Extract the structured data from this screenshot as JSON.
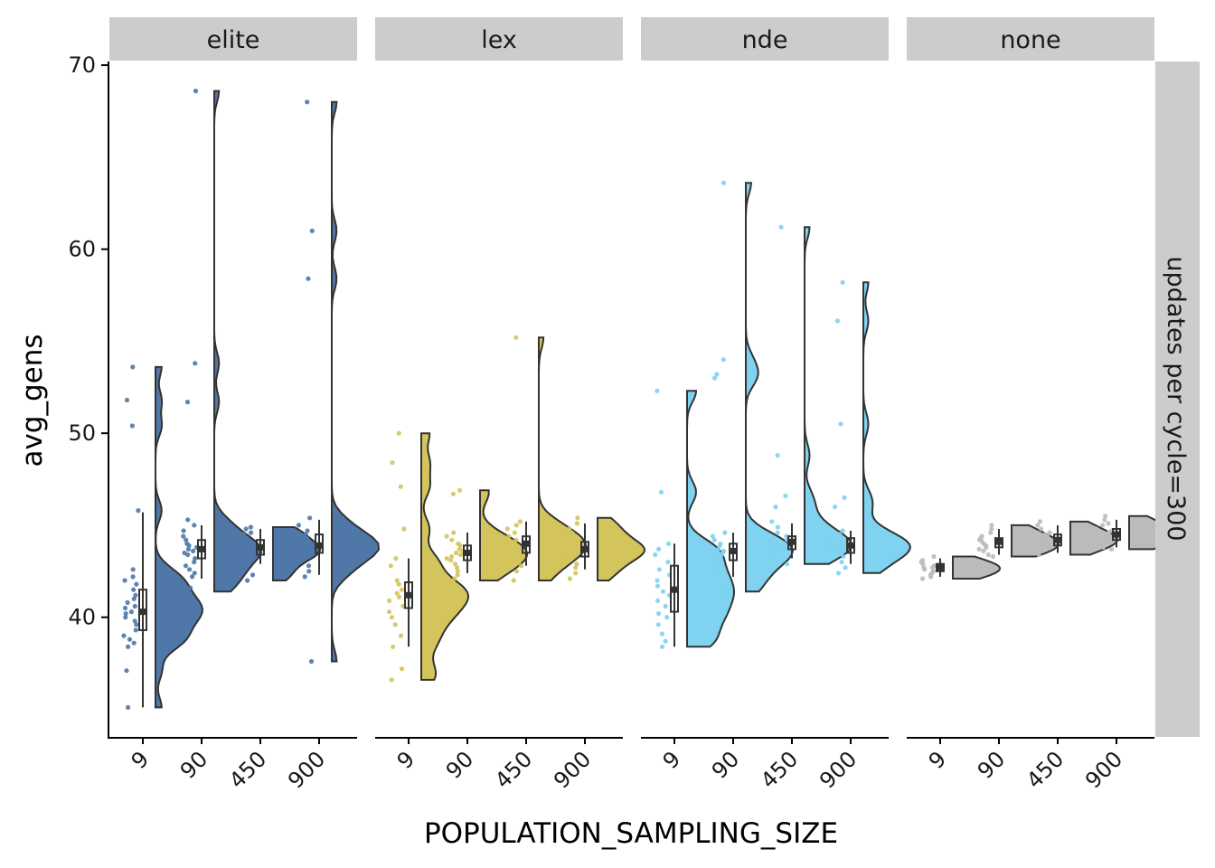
{
  "chart_data": {
    "type": "raincloud",
    "xlabel": "POPULATION_SAMPLING_SIZE",
    "ylabel": "avg_gens",
    "facet_row_label": "updates per cycle=300",
    "categories": [
      "9",
      "90",
      "450",
      "900"
    ],
    "ylim": [
      33.5,
      70.2
    ],
    "yticks": [
      40,
      50,
      60,
      70
    ],
    "grid": false,
    "legend": "none",
    "panels": [
      {
        "name": "elite",
        "color": "#4f77a8",
        "groups": [
          {
            "x": "9",
            "median": 40.3,
            "q1": 39.3,
            "q3": 41.5,
            "whisker_low": 35.1,
            "whisker_high": 45.7,
            "min": 35.1,
            "max": 53.6,
            "points": [
              53.6,
              51.8,
              50.4,
              45.8,
              42.6,
              42.2,
              42.0,
              41.8,
              41.5,
              41.2,
              41.0,
              40.8,
              40.6,
              40.5,
              40.3,
              40.2,
              40.0,
              39.8,
              39.6,
              39.3,
              39.0,
              38.8,
              38.6,
              38.4,
              37.1,
              35.1
            ]
          },
          {
            "x": "90",
            "median": 43.7,
            "q1": 43.2,
            "q3": 44.2,
            "whisker_low": 42.1,
            "whisker_high": 45.0,
            "min": 41.4,
            "max": 68.6,
            "points": [
              68.6,
              53.8,
              51.7,
              45.3,
              45.0,
              44.7,
              44.4,
              44.2,
              44.0,
              43.9,
              43.8,
              43.7,
              43.6,
              43.5,
              43.4,
              43.2,
              43.0,
              42.8,
              42.6,
              42.4,
              42.2,
              41.9,
              41.6,
              41.4
            ]
          },
          {
            "x": "450",
            "median": 43.8,
            "q1": 43.4,
            "q3": 44.2,
            "whisker_low": 42.9,
            "whisker_high": 44.8,
            "min": 42.0,
            "max": 44.9,
            "points": [
              44.9,
              44.8,
              44.6,
              44.5,
              44.3,
              44.1,
              44.0,
              43.9,
              43.8,
              43.7,
              43.6,
              43.5,
              43.4,
              43.3,
              43.2,
              43.0,
              42.8,
              42.5,
              42.3,
              42.0
            ]
          },
          {
            "x": "900",
            "median": 43.9,
            "q1": 43.5,
            "q3": 44.5,
            "whisker_low": 42.3,
            "whisker_high": 45.3,
            "min": 37.6,
            "max": 68.0,
            "points": [
              68.0,
              61.0,
              58.4,
              45.4,
              45.0,
              44.7,
              44.5,
              44.3,
              44.1,
              44.0,
              43.9,
              43.8,
              43.7,
              43.6,
              43.5,
              43.3,
              43.1,
              42.8,
              42.5,
              42.2,
              37.6
            ]
          }
        ]
      },
      {
        "name": "lex",
        "color": "#d4c45c",
        "groups": [
          {
            "x": "9",
            "median": 41.2,
            "q1": 40.5,
            "q3": 41.9,
            "whisker_low": 38.4,
            "whisker_high": 43.2,
            "min": 36.6,
            "max": 50.0,
            "points": [
              50.0,
              48.4,
              47.1,
              44.8,
              43.2,
              42.8,
              42.0,
              41.8,
              41.5,
              41.3,
              41.1,
              40.9,
              40.6,
              40.3,
              40.0,
              39.6,
              39.0,
              38.4,
              37.2,
              36.6
            ]
          },
          {
            "x": "90",
            "median": 43.5,
            "q1": 43.1,
            "q3": 43.9,
            "whisker_low": 42.4,
            "whisker_high": 44.6,
            "min": 42.0,
            "max": 46.9,
            "points": [
              46.9,
              46.7,
              44.6,
              44.4,
              44.2,
              44.0,
              43.9,
              43.7,
              43.6,
              43.5,
              43.4,
              43.3,
              43.2,
              43.1,
              42.9,
              42.7,
              42.5,
              42.3,
              42.1
            ]
          },
          {
            "x": "450",
            "median": 44.0,
            "q1": 43.5,
            "q3": 44.4,
            "whisker_low": 42.8,
            "whisker_high": 45.2,
            "min": 42.0,
            "max": 55.2,
            "points": [
              55.2,
              45.2,
              45.0,
              44.8,
              44.6,
              44.4,
              44.2,
              44.1,
              44.0,
              43.9,
              43.8,
              43.7,
              43.5,
              43.4,
              43.2,
              43.0,
              42.8,
              42.5,
              42.0
            ]
          },
          {
            "x": "900",
            "median": 43.7,
            "q1": 43.3,
            "q3": 44.1,
            "whisker_low": 42.6,
            "whisker_high": 45.1,
            "min": 42.0,
            "max": 45.4,
            "points": [
              45.4,
              45.1,
              44.8,
              44.6,
              44.4,
              44.2,
              44.0,
              43.9,
              43.8,
              43.7,
              43.6,
              43.5,
              43.4,
              43.3,
              43.1,
              42.9,
              42.7,
              42.4,
              42.1
            ]
          }
        ]
      },
      {
        "name": "nde",
        "color": "#7fd2f0",
        "groups": [
          {
            "x": "9",
            "median": 41.5,
            "q1": 40.3,
            "q3": 42.8,
            "whisker_low": 38.4,
            "whisker_high": 44.0,
            "min": 38.4,
            "max": 52.3,
            "points": [
              52.3,
              46.8,
              44.0,
              43.7,
              43.4,
              43.0,
              42.6,
              42.3,
              42.0,
              41.7,
              41.4,
              41.2,
              40.9,
              40.6,
              40.2,
              40.0,
              39.6,
              39.1,
              38.7,
              38.4
            ]
          },
          {
            "x": "90",
            "median": 43.6,
            "q1": 43.1,
            "q3": 44.0,
            "whisker_low": 42.2,
            "whisker_high": 44.6,
            "min": 41.4,
            "max": 63.6,
            "points": [
              63.6,
              54.0,
              53.2,
              53.0,
              44.6,
              44.4,
              44.2,
              44.0,
              43.9,
              43.7,
              43.6,
              43.5,
              43.4,
              43.2,
              43.0,
              42.8,
              42.5,
              42.2,
              41.8,
              41.4
            ]
          },
          {
            "x": "450",
            "median": 44.1,
            "q1": 43.7,
            "q3": 44.4,
            "whisker_low": 43.2,
            "whisker_high": 45.1,
            "min": 42.9,
            "max": 61.2,
            "points": [
              61.2,
              48.8,
              46.6,
              46.0,
              45.2,
              44.9,
              44.6,
              44.4,
              44.2,
              44.1,
              44.0,
              43.9,
              43.8,
              43.7,
              43.5,
              43.3,
              43.1,
              42.9
            ]
          },
          {
            "x": "900",
            "median": 43.9,
            "q1": 43.5,
            "q3": 44.3,
            "whisker_low": 42.9,
            "whisker_high": 44.7,
            "min": 42.4,
            "max": 58.2,
            "points": [
              58.2,
              56.1,
              50.5,
              46.5,
              46.0,
              44.7,
              44.5,
              44.3,
              44.1,
              44.0,
              43.9,
              43.8,
              43.7,
              43.6,
              43.5,
              43.3,
              43.0,
              42.7,
              42.4
            ]
          }
        ]
      },
      {
        "name": "none",
        "color": "#bbbbbb",
        "groups": [
          {
            "x": "9",
            "median": 42.7,
            "q1": 42.5,
            "q3": 42.9,
            "whisker_low": 42.2,
            "whisker_high": 43.2,
            "min": 42.1,
            "max": 43.3,
            "points": [
              43.3,
              43.1,
              43.0,
              42.9,
              42.8,
              42.7,
              42.7,
              42.6,
              42.5,
              42.4,
              42.3,
              42.2,
              42.1
            ]
          },
          {
            "x": "90",
            "median": 44.1,
            "q1": 43.8,
            "q3": 44.3,
            "whisker_low": 43.4,
            "whisker_high": 44.8,
            "min": 43.3,
            "max": 45.0,
            "points": [
              45.0,
              44.8,
              44.6,
              44.4,
              44.3,
              44.2,
              44.1,
              44.0,
              43.9,
              43.8,
              43.7,
              43.6,
              43.4,
              43.3
            ]
          },
          {
            "x": "450",
            "median": 44.2,
            "q1": 43.9,
            "q3": 44.5,
            "whisker_low": 43.5,
            "whisker_high": 45.0,
            "min": 43.4,
            "max": 45.2,
            "points": [
              45.2,
              45.0,
              44.8,
              44.6,
              44.5,
              44.4,
              44.3,
              44.2,
              44.1,
              44.0,
              43.9,
              43.8,
              43.6,
              43.4
            ]
          },
          {
            "x": "900",
            "median": 44.5,
            "q1": 44.2,
            "q3": 44.8,
            "whisker_low": 43.8,
            "whisker_high": 45.3,
            "min": 43.7,
            "max": 45.5,
            "points": [
              45.5,
              45.3,
              45.1,
              45.0,
              44.8,
              44.7,
              44.6,
              44.5,
              44.4,
              44.3,
              44.2,
              44.1,
              44.0,
              43.8,
              43.7
            ]
          }
        ]
      }
    ]
  }
}
